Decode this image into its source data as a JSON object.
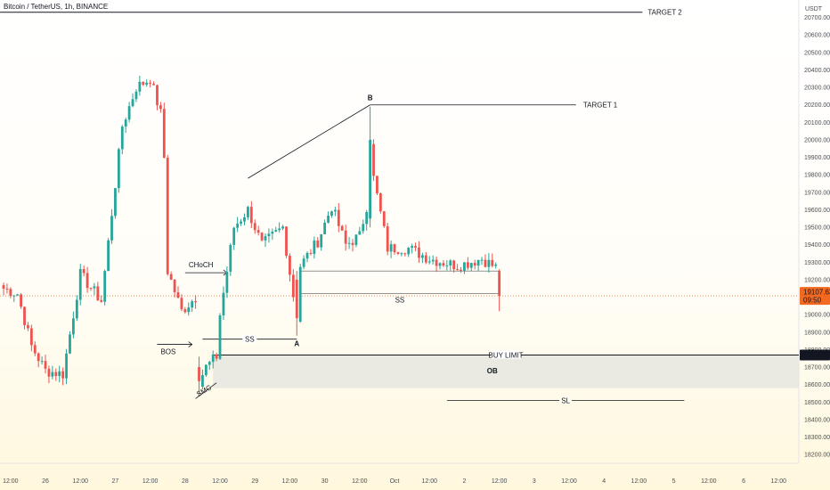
{
  "chart_data": {
    "type": "candlestick",
    "title": "Bitcoin / TetherUS, 1h, BINANCE",
    "currency_label": "USDT",
    "ylim": [
      18150,
      20800
    ],
    "y_ticks": [
      20700,
      20600,
      20500,
      20400,
      20300,
      20200,
      20100,
      20000,
      19900,
      19800,
      19700,
      19600,
      19500,
      19400,
      19300,
      19200,
      19000,
      18900,
      18800,
      18700,
      18600,
      18500,
      18400,
      18300,
      18200
    ],
    "x_ticks": [
      "12:00",
      "26",
      "12:00",
      "27",
      "12:00",
      "28",
      "12:00",
      "29",
      "12:00",
      "30",
      "12:00",
      "Oct",
      "12:00",
      "2",
      "12:00",
      "3",
      "12:00",
      "4",
      "12:00",
      "5",
      "12:00",
      "6",
      "12:00"
    ],
    "x_tick_bars": [
      2,
      12,
      22,
      32,
      42,
      52,
      62,
      72,
      82,
      92,
      102,
      112,
      122,
      132,
      142,
      152,
      162,
      172,
      182,
      192,
      202,
      212,
      222
    ],
    "total_bars": 226,
    "current_price": {
      "price": 19107.63,
      "label": "19107.63",
      "countdown": "09:50"
    },
    "buy_limit_price": {
      "price": 18768.92,
      "label": "18768.92"
    },
    "colors": {
      "up": "#26a69a",
      "down": "#ef5350",
      "price_tag": "#f26a21",
      "zone": "#e6e6e1"
    },
    "candles": [],
    "anchor_points": [
      [
        0,
        19150
      ],
      [
        4,
        19120
      ],
      [
        8,
        18820
      ],
      [
        12,
        18680
      ],
      [
        17,
        18660
      ],
      [
        22,
        19230
      ],
      [
        28,
        19080
      ],
      [
        34,
        20080
      ],
      [
        38,
        20300
      ],
      [
        42,
        20350
      ],
      [
        45,
        20150
      ],
      [
        46,
        19900
      ],
      [
        47,
        19250
      ],
      [
        51,
        19020
      ],
      [
        55,
        19100
      ],
      [
        56,
        18620
      ],
      [
        58,
        18700
      ],
      [
        61,
        18760
      ],
      [
        62,
        19000
      ],
      [
        66,
        19500
      ],
      [
        70,
        19600
      ],
      [
        74,
        19400
      ],
      [
        80,
        19500
      ],
      [
        84,
        18980
      ],
      [
        85,
        19280
      ],
      [
        90,
        19420
      ],
      [
        94,
        19620
      ],
      [
        98,
        19400
      ],
      [
        102,
        19450
      ],
      [
        104,
        19620
      ],
      [
        105,
        20000
      ],
      [
        106,
        19780
      ],
      [
        110,
        19380
      ],
      [
        116,
        19380
      ],
      [
        122,
        19320
      ],
      [
        130,
        19280
      ],
      [
        137,
        19320
      ],
      [
        141,
        19270
      ],
      [
        142,
        19100
      ]
    ],
    "annotations": {
      "target2": {
        "label": "TARGET 2",
        "price": 20730,
        "x_end_bar": 183
      },
      "target1": {
        "label": "TARGET 1",
        "price": 20200,
        "x_start_bar": 105,
        "x_end_bar": 164
      },
      "point_b": {
        "label": "B",
        "price": 20200,
        "bar": 105
      },
      "point_a": {
        "label": "A",
        "price": 18830,
        "bar": 84
      },
      "choch": {
        "label": "CHoCH",
        "price": 19240,
        "x_start_bar": 52,
        "x_end_bar": 64
      },
      "bos": {
        "label": "BOS",
        "price": 18830,
        "x_start_bar": 44,
        "x_end_bar": 54
      },
      "ss_left": {
        "label": "SS",
        "price": 18860,
        "x_start_bar": 57,
        "x_end_bar": 84
      },
      "ss_right": {
        "label": "SS",
        "price": 19120,
        "x_start_bar": 85,
        "x_end_bar": 142
      },
      "range_top": {
        "price": 19250,
        "x_start_bar": 85,
        "x_end_bar": 142
      },
      "trend_b": {
        "x_start_bar": 70,
        "price_start": 19780,
        "x_end_bar": 105,
        "price_end": 20200
      },
      "buy_limit": {
        "label": "BUY LIMIT",
        "price": 18768.92,
        "x_start_bar": 60
      },
      "ob": {
        "label": "OB",
        "price_top": 18768.92,
        "price_bottom": 18580,
        "x_start_bar": 60
      },
      "smc": {
        "label": "SMC",
        "x_start_bar": 55,
        "price_start": 18520,
        "x_end_bar": 61,
        "price_end": 18610
      },
      "sl": {
        "label": "SL",
        "price": 18510,
        "x_start_bar": 127,
        "x_end_bar": 195
      }
    }
  }
}
